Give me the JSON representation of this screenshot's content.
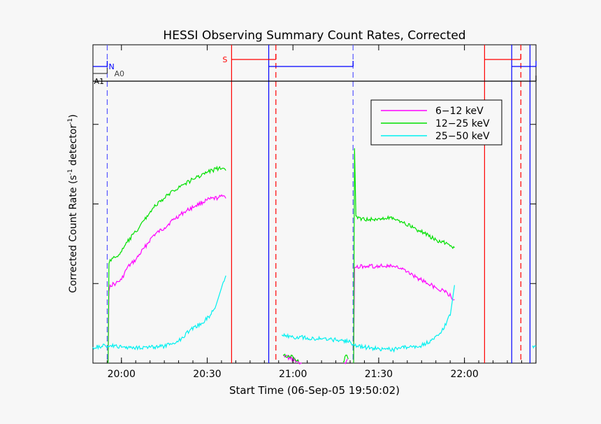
{
  "chart_data": {
    "type": "line",
    "title": "HESSI Observing Summary Count Rates, Corrected",
    "xlabel": "Start Time (06-Sep-05 19:50:02)",
    "ylabel_parts": [
      "Corrected Count Rate (s",
      "-1",
      " detector",
      "-1",
      ")"
    ],
    "x_units": "minutes after 19:50:02",
    "xlim": [
      0,
      155
    ],
    "ylim": [
      0,
      4
    ],
    "xticks": [
      {
        "x": 9.97,
        "label": "20:00"
      },
      {
        "x": 39.97,
        "label": "20:30"
      },
      {
        "x": 69.97,
        "label": "21:00"
      },
      {
        "x": 99.97,
        "label": "21:30"
      },
      {
        "x": 129.97,
        "label": "22:00"
      },
      {
        "x": 159.97,
        "label": "22:30"
      }
    ],
    "yticks": [
      1,
      2,
      3
    ],
    "legend_position": "top-right",
    "series": [
      {
        "name": "6−12 keV",
        "color": "#ff00ff",
        "segments": [
          [
            [
              5.3,
              0.0
            ],
            [
              5.6,
              0.9
            ],
            [
              6,
              0.98
            ],
            [
              8,
              1.0
            ],
            [
              10,
              1.05
            ],
            [
              12,
              1.2
            ],
            [
              15,
              1.3
            ],
            [
              18,
              1.45
            ],
            [
              21,
              1.6
            ],
            [
              25,
              1.7
            ],
            [
              28,
              1.8
            ],
            [
              32,
              1.9
            ],
            [
              36,
              1.98
            ],
            [
              40,
              2.05
            ],
            [
              44,
              2.08
            ],
            [
              46,
              2.1
            ],
            [
              46.5,
              2.07
            ]
          ],
          [
            [
              66.5,
              0.1
            ],
            [
              70,
              0.05
            ],
            [
              73,
              0.0
            ]
          ],
          [
            [
              88,
              0.0
            ],
            [
              89,
              0.05
            ]
          ],
          [
            [
              91.2,
              0.0
            ],
            [
              91.5,
              1.2
            ],
            [
              95,
              1.22
            ],
            [
              100,
              1.22
            ],
            [
              105,
              1.22
            ],
            [
              108,
              1.18
            ],
            [
              112,
              1.1
            ],
            [
              116,
              1.02
            ],
            [
              120,
              0.95
            ],
            [
              124,
              0.88
            ],
            [
              126.5,
              0.8
            ]
          ]
        ]
      },
      {
        "name": "12−25 keV",
        "color": "#00e000",
        "segments": [
          [
            [
              5.3,
              0.0
            ],
            [
              5.6,
              1.25
            ],
            [
              6,
              1.3
            ],
            [
              8,
              1.33
            ],
            [
              10,
              1.4
            ],
            [
              12,
              1.52
            ],
            [
              15,
              1.65
            ],
            [
              18,
              1.8
            ],
            [
              21,
              1.95
            ],
            [
              25,
              2.07
            ],
            [
              28,
              2.17
            ],
            [
              32,
              2.25
            ],
            [
              36,
              2.33
            ],
            [
              40,
              2.4
            ],
            [
              44,
              2.45
            ],
            [
              46.5,
              2.42
            ]
          ],
          [
            [
              66.5,
              0.1
            ],
            [
              70,
              0.08
            ],
            [
              72,
              0.02
            ]
          ],
          [
            [
              87.5,
              0.02
            ],
            [
              88.8,
              0.1
            ],
            [
              89.3,
              0.05
            ]
          ],
          [
            [
              91.2,
              0.0
            ],
            [
              91.5,
              2.7
            ],
            [
              92,
              1.85
            ],
            [
              95,
              1.8
            ],
            [
              100,
              1.82
            ],
            [
              105,
              1.83
            ],
            [
              108,
              1.78
            ],
            [
              112,
              1.7
            ],
            [
              116,
              1.63
            ],
            [
              120,
              1.55
            ],
            [
              124,
              1.5
            ],
            [
              126.5,
              1.45
            ]
          ]
        ]
      },
      {
        "name": "25−50 keV",
        "color": "#00f0f0",
        "segments": [
          [
            [
              0,
              0.2
            ],
            [
              3,
              0.21
            ],
            [
              6,
              0.22
            ],
            [
              10,
              0.2
            ],
            [
              15,
              0.2
            ],
            [
              20,
              0.2
            ],
            [
              25,
              0.21
            ],
            [
              30,
              0.28
            ],
            [
              34,
              0.42
            ],
            [
              38,
              0.5
            ],
            [
              41,
              0.6
            ],
            [
              43,
              0.72
            ],
            [
              45,
              0.95
            ],
            [
              46.5,
              1.1
            ]
          ],
          [
            [
              66,
              0.35
            ],
            [
              70,
              0.33
            ],
            [
              75,
              0.32
            ],
            [
              80,
              0.3
            ],
            [
              85,
              0.29
            ],
            [
              90,
              0.27
            ],
            [
              91.5,
              0.22
            ],
            [
              95,
              0.2
            ],
            [
              100,
              0.18
            ],
            [
              105,
              0.17
            ],
            [
              110,
              0.2
            ],
            [
              115,
              0.22
            ],
            [
              119,
              0.3
            ],
            [
              122,
              0.4
            ],
            [
              125,
              0.6
            ],
            [
              126.5,
              0.98
            ]
          ],
          [
            [
              153.8,
              0.22
            ],
            [
              155,
              0.21
            ]
          ]
        ]
      }
    ],
    "event_lines": [
      {
        "x": 5.0,
        "color": "#5555ff",
        "style": "dashed"
      },
      {
        "x": 48.5,
        "color": "#ff0000",
        "style": "solid"
      },
      {
        "x": 61.5,
        "color": "#0000ff",
        "style": "solid"
      },
      {
        "x": 64.0,
        "color": "#ff0000",
        "style": "dashed"
      },
      {
        "x": 91.0,
        "color": "#5555ff",
        "style": "dashed"
      },
      {
        "x": 137.0,
        "color": "#ff0000",
        "style": "solid"
      },
      {
        "x": 146.5,
        "color": "#0000ff",
        "style": "solid"
      },
      {
        "x": 149.7,
        "color": "#ff0000",
        "style": "dashed"
      },
      {
        "x": 152.9,
        "color": "#0000ff",
        "style": "solid"
      }
    ],
    "status_bars": [
      {
        "label": "S",
        "color": "#ff0000",
        "intervals": [
          [
            48.5,
            64.0
          ],
          [
            137.0,
            149.7
          ]
        ]
      },
      {
        "label": "N",
        "color": "#0000ff",
        "intervals": [
          [
            0,
            5.0
          ],
          [
            61.5,
            91.0
          ],
          [
            146.5,
            155
          ]
        ]
      },
      {
        "label": "A0",
        "color": "#444444",
        "intervals": [
          [
            0,
            5.0
          ]
        ]
      },
      {
        "label": "A1",
        "color": "#000000",
        "intervals": [
          [
            0,
            155
          ]
        ]
      }
    ]
  }
}
